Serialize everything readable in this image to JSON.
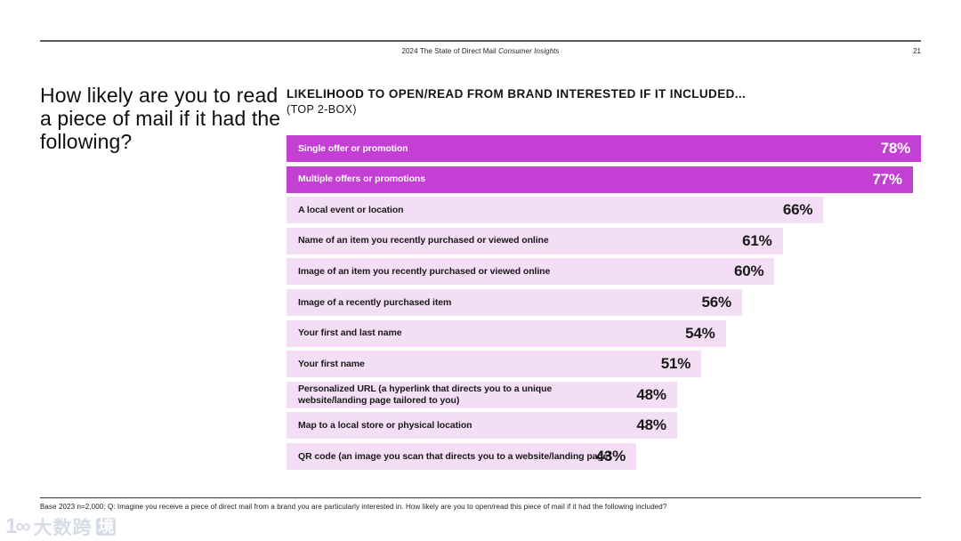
{
  "header": {
    "title_regular": "2024 The State of Direct Mail ",
    "title_italic": "Consumer Insights",
    "page_number": "21"
  },
  "question": "How likely are you to read a piece of mail if it had the following?",
  "chart_data": {
    "type": "bar",
    "orientation": "horizontal",
    "title": "LIKELIHOOD TO OPEN/READ FROM BRAND INTERESTED IF IT INCLUDED...",
    "subtitle": "(TOP 2-BOX)",
    "unit": "%",
    "categories": [
      "Single offer or promotion",
      "Multiple offers or promotions",
      "A local event or location",
      "Name of an item you recently purchased or viewed online",
      "Image of an item you recently purchased or viewed online",
      "Image of a recently purchased item",
      "Your first and last name",
      "Your first name",
      "Personalized URL (a hyperlink that directs you to a unique website/landing page tailored to you)",
      "Map to a local store or physical location",
      "QR code (an image you scan that directs you to a website/landing page)"
    ],
    "values": [
      78,
      77,
      66,
      61,
      60,
      56,
      54,
      51,
      48,
      48,
      43
    ],
    "highlighted": [
      true,
      true,
      false,
      false,
      false,
      false,
      false,
      false,
      false,
      false,
      false
    ],
    "axis_max": 78,
    "gridlines": false,
    "legend": "none",
    "colors": {
      "highlight_bar": "#c43fd4",
      "base_bar": "#f4def6",
      "highlight_text": "#ffffff",
      "base_text": "#1a1a1a"
    }
  },
  "footnote": "Base 2023 n=2,000; Q: Imagine you receive a piece of direct mail from a brand you are particularly interested in. How likely are you to open/read this piece of mail if it had the following included?",
  "watermark": {
    "logo_mark": "1∞",
    "text": "大数跨",
    "boxed_char": "境"
  }
}
